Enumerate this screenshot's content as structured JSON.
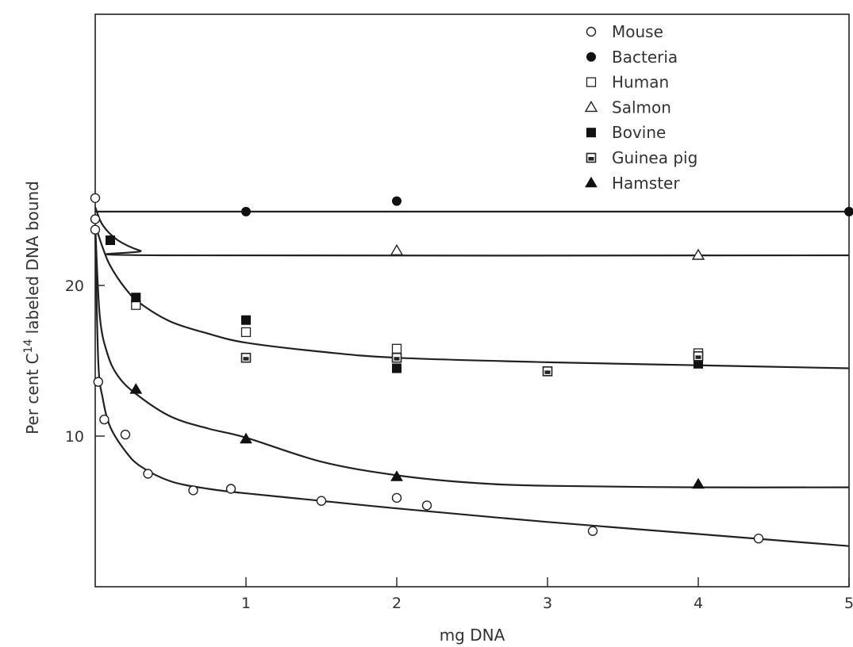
{
  "chart_data": {
    "type": "scatter",
    "xlabel": "mg DNA",
    "ylabel_prefix": "Per cent C",
    "ylabel_superscript": "14",
    "ylabel_suffix": " labeled DNA bound",
    "xlim": [
      0,
      5
    ],
    "ylim": [
      0,
      38
    ],
    "x_ticks": [
      1,
      2,
      3,
      4,
      5
    ],
    "y_ticks": [
      10,
      20
    ],
    "grid": false,
    "legend_position": "top-right",
    "series": [
      {
        "name": "Mouse",
        "marker": "circle-open",
        "points": [
          [
            0,
            25.8
          ],
          [
            0,
            24.4
          ],
          [
            0,
            23.7
          ],
          [
            0.02,
            13.6
          ],
          [
            0.06,
            11.1
          ],
          [
            0.2,
            10.1
          ],
          [
            0.35,
            7.5
          ],
          [
            0.65,
            6.4
          ],
          [
            0.9,
            6.5
          ],
          [
            1.5,
            5.7
          ],
          [
            2.0,
            5.9
          ],
          [
            2.2,
            5.4
          ],
          [
            3.3,
            3.7
          ],
          [
            4.4,
            3.2
          ]
        ]
      },
      {
        "name": "Bacteria",
        "marker": "circle-filled",
        "points": [
          [
            1,
            24.9
          ],
          [
            2,
            25.6
          ],
          [
            5,
            24.9
          ]
        ]
      },
      {
        "name": "Human",
        "marker": "square-open",
        "points": [
          [
            0.27,
            18.7
          ],
          [
            1,
            16.9
          ],
          [
            2,
            15.8
          ],
          [
            4,
            15.5
          ]
        ]
      },
      {
        "name": "Salmon",
        "marker": "triangle-open",
        "points": [
          [
            2,
            22.3
          ],
          [
            4,
            22.0
          ]
        ]
      },
      {
        "name": "Bovine",
        "marker": "square-filled",
        "points": [
          [
            0.1,
            23.0
          ],
          [
            0.27,
            19.2
          ],
          [
            1,
            17.7
          ],
          [
            2,
            14.5
          ],
          [
            4,
            14.8
          ]
        ]
      },
      {
        "name": "Guinea pig",
        "marker": "square-half",
        "points": [
          [
            1,
            15.2
          ],
          [
            2,
            15.2
          ],
          [
            3,
            14.3
          ],
          [
            4,
            15.3
          ]
        ]
      },
      {
        "name": "Hamster",
        "marker": "triangle-filled",
        "points": [
          [
            0.27,
            13.1
          ],
          [
            1,
            9.8
          ],
          [
            2,
            7.3
          ],
          [
            4,
            6.8
          ]
        ]
      }
    ],
    "fitted_curves": [
      {
        "name": "bacteria-fit",
        "x": [
          0,
          5
        ],
        "y": [
          24.9,
          24.9
        ]
      },
      {
        "name": "salmon-fit",
        "x": [
          0,
          0.05,
          0.15,
          0.3,
          0.45,
          5
        ],
        "y": [
          25.2,
          24.0,
          23.0,
          22.3,
          22.0,
          22.0
        ]
      },
      {
        "name": "mammal-fit",
        "x": [
          0,
          0.05,
          0.1,
          0.2,
          0.3,
          0.5,
          0.75,
          1,
          1.5,
          2,
          3,
          4,
          5
        ],
        "y": [
          24.0,
          22.5,
          21.3,
          19.8,
          18.8,
          17.6,
          16.8,
          16.2,
          15.6,
          15.2,
          14.9,
          14.7,
          14.5
        ]
      },
      {
        "name": "hamster-fit",
        "x": [
          0,
          0.03,
          0.08,
          0.15,
          0.27,
          0.5,
          0.75,
          1,
          1.5,
          2,
          2.5,
          3,
          4,
          5
        ],
        "y": [
          24.0,
          18.0,
          15.5,
          14.0,
          12.8,
          11.3,
          10.5,
          9.9,
          8.3,
          7.4,
          6.9,
          6.7,
          6.6,
          6.6
        ]
      },
      {
        "name": "mouse-fit",
        "x": [
          0,
          0.02,
          0.05,
          0.1,
          0.2,
          0.3,
          0.5,
          0.75,
          1,
          1.5,
          2,
          3,
          4,
          5
        ],
        "y": [
          23.7,
          15.0,
          12.5,
          10.6,
          9.0,
          8.0,
          7.0,
          6.5,
          6.2,
          5.7,
          5.2,
          4.3,
          3.5,
          2.7
        ]
      }
    ]
  }
}
